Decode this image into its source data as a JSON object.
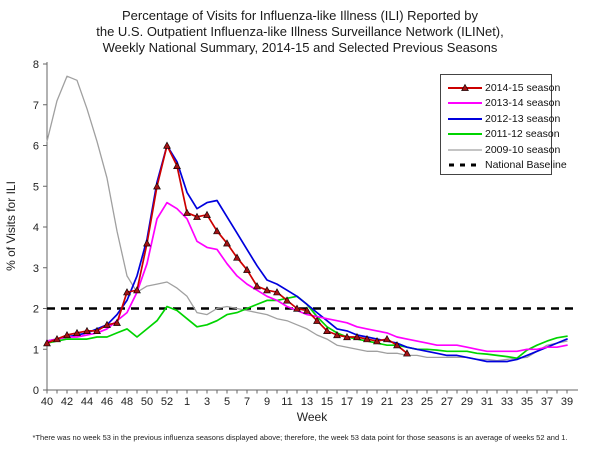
{
  "title": {
    "lines": [
      "Percentage of Visits for Influenza-like Illness (ILI) Reported by",
      "the U.S. Outpatient Influenza-like Illness Surveillance Network (ILINet),",
      "Weekly National Summary, 2014-15 and Selected Previous Seasons"
    ]
  },
  "footnote": "*There was no week 53 in the previous influenza seasons displayed above; therefore, the week 53 data point for those seasons is an average of weeks 52 and 1.",
  "chart_data": {
    "type": "line",
    "x_axis": {
      "label": "Week",
      "tick_labels": [
        "40",
        "42",
        "44",
        "46",
        "48",
        "50",
        "52",
        "1",
        "3",
        "5",
        "7",
        "9",
        "11",
        "13",
        "15",
        "17",
        "19",
        "21",
        "23",
        "25",
        "27",
        "29",
        "31",
        "33",
        "35",
        "37",
        "39"
      ]
    },
    "y_axis": {
      "label": "% of Visits for ILI",
      "min": 0,
      "max": 8,
      "ticks": [
        0,
        1,
        2,
        3,
        4,
        5,
        6,
        7,
        8
      ]
    },
    "baseline": {
      "label": "National Baseline",
      "value": 2.0,
      "color": "#000000",
      "style": "dashed"
    },
    "categories": [
      "40",
      "41",
      "42",
      "43",
      "44",
      "45",
      "46",
      "47",
      "48",
      "49",
      "50",
      "51",
      "52",
      "53",
      "1",
      "2",
      "3",
      "4",
      "5",
      "6",
      "7",
      "8",
      "9",
      "10",
      "11",
      "12",
      "13",
      "14",
      "15",
      "16",
      "17",
      "18",
      "19",
      "20",
      "21",
      "22",
      "23",
      "24",
      "25",
      "26",
      "27",
      "28",
      "29",
      "30",
      "31",
      "32",
      "33",
      "34",
      "35",
      "36",
      "37",
      "38",
      "39"
    ],
    "series": [
      {
        "name": "2014-15 season",
        "color": "#cc0000",
        "marker": "triangle",
        "marker_fill": "#a41214",
        "values": [
          1.15,
          1.25,
          1.35,
          1.4,
          1.45,
          1.45,
          1.6,
          1.65,
          2.4,
          2.45,
          3.6,
          5.0,
          6.0,
          5.5,
          4.35,
          4.25,
          4.3,
          3.9,
          3.6,
          3.25,
          2.95,
          2.55,
          2.45,
          2.4,
          2.2,
          2.0,
          1.95,
          1.7,
          1.45,
          1.35,
          1.3,
          1.3,
          1.25,
          1.2,
          1.25,
          1.1,
          0.9,
          null,
          null,
          null,
          null,
          null,
          null,
          null,
          null,
          null,
          null,
          null,
          null,
          null,
          null,
          null,
          null
        ]
      },
      {
        "name": "2013-14 season",
        "color": "#ff00ff",
        "marker": "none",
        "values": [
          1.2,
          1.25,
          1.3,
          1.3,
          1.35,
          1.4,
          1.5,
          1.7,
          1.9,
          2.4,
          3.1,
          4.2,
          4.6,
          4.45,
          4.2,
          3.65,
          3.5,
          3.45,
          3.1,
          2.8,
          2.6,
          2.45,
          2.3,
          2.2,
          2.05,
          1.95,
          1.85,
          1.8,
          1.75,
          1.7,
          1.65,
          1.55,
          1.5,
          1.45,
          1.4,
          1.3,
          1.25,
          1.2,
          1.15,
          1.1,
          1.1,
          1.1,
          1.05,
          1.0,
          0.95,
          0.95,
          0.95,
          0.95,
          1.0,
          1.0,
          1.05,
          1.05,
          1.1
        ]
      },
      {
        "name": "2012-13 season",
        "color": "#0000dd",
        "marker": "none",
        "values": [
          1.2,
          1.25,
          1.3,
          1.35,
          1.4,
          1.5,
          1.6,
          1.85,
          2.2,
          2.8,
          3.7,
          5.1,
          6.0,
          5.6,
          4.85,
          4.45,
          4.6,
          4.65,
          4.25,
          3.85,
          3.45,
          3.05,
          2.7,
          2.6,
          2.45,
          2.3,
          2.1,
          1.9,
          1.7,
          1.5,
          1.45,
          1.35,
          1.3,
          1.25,
          1.2,
          1.15,
          1.05,
          1.0,
          0.95,
          0.9,
          0.85,
          0.85,
          0.8,
          0.75,
          0.7,
          0.7,
          0.7,
          0.75,
          0.85,
          0.95,
          1.05,
          1.15,
          1.25
        ]
      },
      {
        "name": "2011-12 season",
        "color": "#00d400",
        "marker": "none",
        "values": [
          1.15,
          1.2,
          1.25,
          1.25,
          1.25,
          1.3,
          1.3,
          1.4,
          1.5,
          1.3,
          1.5,
          1.7,
          2.05,
          1.95,
          1.75,
          1.55,
          1.6,
          1.7,
          1.85,
          1.9,
          2.0,
          2.1,
          2.2,
          2.2,
          2.25,
          2.3,
          2.1,
          1.8,
          1.55,
          1.4,
          1.3,
          1.25,
          1.2,
          1.15,
          1.1,
          1.1,
          1.05,
          1.0,
          1.0,
          0.98,
          0.95,
          0.95,
          0.95,
          0.9,
          0.88,
          0.85,
          0.82,
          0.78,
          0.98,
          1.1,
          1.2,
          1.28,
          1.32
        ]
      },
      {
        "name": "2009-10 season",
        "color": "#a0a0a0",
        "marker": "none",
        "values": [
          6.1,
          7.1,
          7.7,
          7.6,
          6.9,
          6.1,
          5.2,
          3.9,
          2.8,
          2.4,
          2.55,
          2.6,
          2.65,
          2.5,
          2.3,
          1.9,
          1.85,
          2.0,
          2.05,
          2.0,
          1.95,
          1.9,
          1.85,
          1.75,
          1.7,
          1.6,
          1.5,
          1.35,
          1.25,
          1.1,
          1.05,
          1.0,
          0.95,
          0.95,
          0.9,
          0.9,
          0.85,
          0.85,
          0.8,
          0.8,
          0.8,
          0.8,
          0.8,
          0.75,
          0.75,
          0.72,
          0.75,
          0.78,
          0.8,
          0.95,
          1.1,
          1.15,
          1.2
        ]
      }
    ],
    "legend_position": "upper-right",
    "grid": false
  }
}
